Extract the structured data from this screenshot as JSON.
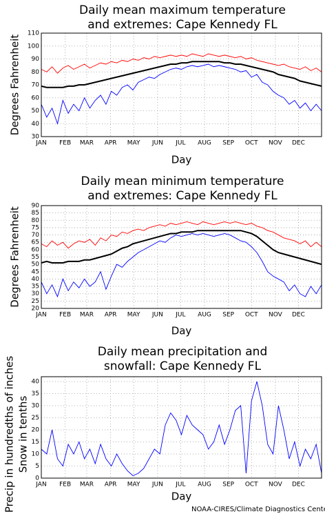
{
  "chart_data": [
    {
      "type": "line",
      "title": [
        "Daily mean maximum temperature",
        "and extremes: Cape Kennedy FL"
      ],
      "xlabel": "Day",
      "ylabel": [
        "Degrees Fahrenheit"
      ],
      "x": [
        1,
        8,
        15,
        22,
        29,
        36,
        43,
        50,
        57,
        64,
        71,
        78,
        85,
        92,
        99,
        106,
        113,
        120,
        127,
        134,
        141,
        148,
        155,
        162,
        169,
        176,
        183,
        190,
        197,
        204,
        211,
        218,
        225,
        232,
        239,
        246,
        253,
        260,
        267,
        274,
        281,
        288,
        295,
        302,
        309,
        316,
        323,
        330,
        337,
        344,
        351,
        358,
        365
      ],
      "xlim": [
        1,
        365
      ],
      "xticks": [
        {
          "value": 1,
          "label": "JAN"
        },
        {
          "value": 32,
          "label": "FEB"
        },
        {
          "value": 60,
          "label": "MAR"
        },
        {
          "value": 91,
          "label": "APR"
        },
        {
          "value": 121,
          "label": "MAY"
        },
        {
          "value": 152,
          "label": "JUN"
        },
        {
          "value": 182,
          "label": "JUL"
        },
        {
          "value": 213,
          "label": "AUG"
        },
        {
          "value": 244,
          "label": "SEP"
        },
        {
          "value": 274,
          "label": "OCT"
        },
        {
          "value": 305,
          "label": "NOV"
        },
        {
          "value": 335,
          "label": "DEC"
        }
      ],
      "ylim": [
        30,
        110
      ],
      "yticks": [
        30,
        40,
        50,
        60,
        70,
        80,
        90,
        100,
        110
      ],
      "grid": true,
      "series": [
        {
          "color": "#ff0000",
          "values": [
            82,
            80,
            84,
            79,
            83,
            85,
            82,
            84,
            86,
            83,
            85,
            87,
            86,
            88,
            87,
            89,
            88,
            90,
            89,
            91,
            90,
            92,
            91,
            92,
            93,
            92,
            93,
            92,
            94,
            93,
            92,
            94,
            93,
            92,
            93,
            92,
            91,
            92,
            90,
            91,
            89,
            88,
            87,
            86,
            85,
            86,
            84,
            83,
            82,
            84,
            81,
            83,
            80
          ]
        },
        {
          "color": "#0000ff",
          "values": [
            55,
            45,
            52,
            40,
            58,
            48,
            55,
            50,
            60,
            52,
            58,
            62,
            55,
            65,
            62,
            68,
            70,
            66,
            72,
            74,
            76,
            75,
            78,
            80,
            82,
            83,
            82,
            84,
            85,
            84,
            85,
            86,
            84,
            85,
            84,
            83,
            82,
            80,
            81,
            76,
            78,
            72,
            70,
            65,
            62,
            60,
            55,
            58,
            52,
            56,
            50,
            55,
            50
          ]
        },
        {
          "color": "#000000",
          "values": [
            69,
            68,
            68,
            68,
            68,
            69,
            69,
            70,
            70,
            71,
            72,
            73,
            74,
            75,
            76,
            77,
            78,
            79,
            80,
            81,
            82,
            83,
            84,
            85,
            86,
            86,
            87,
            87,
            88,
            88,
            88,
            88,
            88,
            88,
            87,
            87,
            86,
            86,
            85,
            84,
            83,
            82,
            81,
            80,
            78,
            77,
            76,
            75,
            73,
            72,
            71,
            70,
            69
          ]
        }
      ]
    },
    {
      "type": "line",
      "title": [
        "Daily mean minimum temperature",
        "and extremes: Cape Kennedy FL"
      ],
      "xlabel": "Day",
      "ylabel": [
        "Degrees Fahrenheit"
      ],
      "x": [
        1,
        8,
        15,
        22,
        29,
        36,
        43,
        50,
        57,
        64,
        71,
        78,
        85,
        92,
        99,
        106,
        113,
        120,
        127,
        134,
        141,
        148,
        155,
        162,
        169,
        176,
        183,
        190,
        197,
        204,
        211,
        218,
        225,
        232,
        239,
        246,
        253,
        260,
        267,
        274,
        281,
        288,
        295,
        302,
        309,
        316,
        323,
        330,
        337,
        344,
        351,
        358,
        365
      ],
      "xlim": [
        1,
        365
      ],
      "xticks": [
        {
          "value": 1,
          "label": "JAN"
        },
        {
          "value": 32,
          "label": "FEB"
        },
        {
          "value": 60,
          "label": "MAR"
        },
        {
          "value": 91,
          "label": "APR"
        },
        {
          "value": 121,
          "label": "MAY"
        },
        {
          "value": 152,
          "label": "JUN"
        },
        {
          "value": 182,
          "label": "JUL"
        },
        {
          "value": 213,
          "label": "AUG"
        },
        {
          "value": 244,
          "label": "SEP"
        },
        {
          "value": 274,
          "label": "OCT"
        },
        {
          "value": 305,
          "label": "NOV"
        },
        {
          "value": 335,
          "label": "DEC"
        }
      ],
      "ylim": [
        20,
        90
      ],
      "yticks": [
        20,
        25,
        30,
        35,
        40,
        45,
        50,
        55,
        60,
        65,
        70,
        75,
        80,
        85,
        90
      ],
      "grid": true,
      "series": [
        {
          "color": "#ff0000",
          "values": [
            64,
            62,
            66,
            63,
            65,
            61,
            64,
            66,
            65,
            67,
            63,
            68,
            66,
            70,
            69,
            72,
            71,
            73,
            74,
            73,
            75,
            76,
            77,
            76,
            78,
            77,
            78,
            79,
            78,
            77,
            79,
            78,
            77,
            78,
            79,
            78,
            79,
            78,
            77,
            78,
            76,
            75,
            73,
            72,
            70,
            68,
            67,
            66,
            64,
            66,
            62,
            65,
            62
          ]
        },
        {
          "color": "#0000ff",
          "values": [
            38,
            30,
            36,
            28,
            40,
            32,
            38,
            34,
            40,
            35,
            38,
            45,
            33,
            42,
            50,
            48,
            52,
            55,
            58,
            60,
            62,
            64,
            66,
            65,
            68,
            70,
            69,
            70,
            71,
            70,
            71,
            70,
            69,
            70,
            71,
            70,
            68,
            66,
            65,
            62,
            58,
            52,
            45,
            42,
            40,
            38,
            32,
            36,
            30,
            28,
            35,
            30,
            36
          ]
        },
        {
          "color": "#000000",
          "values": [
            51,
            52,
            51,
            51,
            51,
            52,
            52,
            52,
            53,
            53,
            54,
            55,
            56,
            57,
            59,
            61,
            62,
            64,
            65,
            66,
            67,
            68,
            69,
            70,
            71,
            71,
            72,
            72,
            72,
            73,
            73,
            73,
            73,
            73,
            73,
            73,
            73,
            73,
            72,
            71,
            69,
            66,
            63,
            60,
            58,
            57,
            56,
            55,
            54,
            53,
            52,
            51,
            50
          ]
        }
      ]
    },
    {
      "type": "line",
      "title": [
        "Daily mean precipitation and",
        "snowfall: Cape Kennedy FL"
      ],
      "xlabel": "Day",
      "ylabel": [
        "Precip in hundredths of inches",
        "Snow in tenths"
      ],
      "x": [
        1,
        8,
        15,
        22,
        29,
        36,
        43,
        50,
        57,
        64,
        71,
        78,
        85,
        92,
        99,
        106,
        113,
        120,
        127,
        134,
        141,
        148,
        155,
        162,
        169,
        176,
        183,
        190,
        197,
        204,
        211,
        218,
        225,
        232,
        239,
        246,
        253,
        260,
        267,
        274,
        281,
        288,
        295,
        302,
        309,
        316,
        323,
        330,
        337,
        344,
        351,
        358,
        365
      ],
      "xlim": [
        1,
        365
      ],
      "xticks": [
        {
          "value": 1,
          "label": "JAN"
        },
        {
          "value": 32,
          "label": "FEB"
        },
        {
          "value": 60,
          "label": "MAR"
        },
        {
          "value": 91,
          "label": "APR"
        },
        {
          "value": 121,
          "label": "MAY"
        },
        {
          "value": 152,
          "label": "JUN"
        },
        {
          "value": 182,
          "label": "JUL"
        },
        {
          "value": 213,
          "label": "AUG"
        },
        {
          "value": 244,
          "label": "SEP"
        },
        {
          "value": 274,
          "label": "OCT"
        },
        {
          "value": 305,
          "label": "NOV"
        },
        {
          "value": 335,
          "label": "DEC"
        }
      ],
      "ylim": [
        0,
        42
      ],
      "yticks": [
        0,
        5,
        10,
        15,
        20,
        25,
        30,
        35,
        40
      ],
      "grid": true,
      "series": [
        {
          "color": "#0000ff",
          "values": [
            12,
            10,
            20,
            8,
            5,
            14,
            10,
            15,
            8,
            12,
            6,
            14,
            8,
            5,
            10,
            6,
            3,
            1,
            2,
            4,
            8,
            12,
            10,
            22,
            27,
            24,
            18,
            26,
            22,
            20,
            18,
            12,
            15,
            22,
            14,
            20,
            28,
            30,
            2,
            32,
            40,
            30,
            14,
            10,
            30,
            20,
            8,
            15,
            5,
            12,
            8,
            14,
            2
          ]
        },
        {
          "color": "#ff0000",
          "values": [
            0,
            0,
            0,
            0,
            0,
            0,
            0,
            0,
            0,
            0,
            0,
            0,
            0,
            0,
            0,
            0,
            0,
            0,
            0,
            0,
            0,
            0,
            0,
            0,
            0,
            0,
            0,
            0,
            0,
            0,
            0,
            0,
            0,
            0,
            0,
            0,
            0,
            0,
            0,
            0,
            0,
            0,
            0,
            0,
            0,
            0,
            0,
            0,
            0,
            0,
            0,
            0,
            0
          ]
        }
      ]
    }
  ],
  "footer": "NOAA-CIRES/Climate Diagnostics Center"
}
